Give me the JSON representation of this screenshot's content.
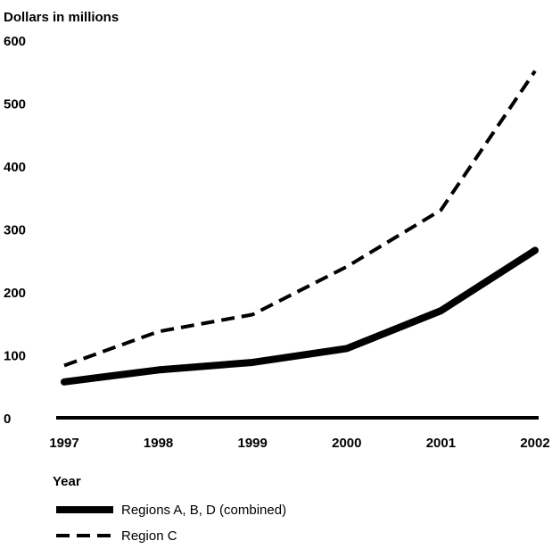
{
  "chart_data": {
    "type": "line",
    "title": "",
    "ylabel": "Dollars in millions",
    "xlabel": "Year",
    "x": [
      "1997",
      "1998",
      "1999",
      "2000",
      "2001",
      "2002"
    ],
    "ylim": [
      0,
      600
    ],
    "yticks": [
      "0",
      "100",
      "200",
      "300",
      "400",
      "500",
      "600"
    ],
    "grid": false,
    "legend_position": "bottom-left",
    "series": [
      {
        "name": "Regions A, B, D (combined)",
        "style": "solid",
        "color": "#000000",
        "values": [
          57,
          76,
          88,
          110,
          170,
          266
        ]
      },
      {
        "name": "Region C",
        "style": "dashed",
        "color": "#000000",
        "values": [
          83,
          137,
          164,
          240,
          330,
          551
        ]
      }
    ]
  }
}
